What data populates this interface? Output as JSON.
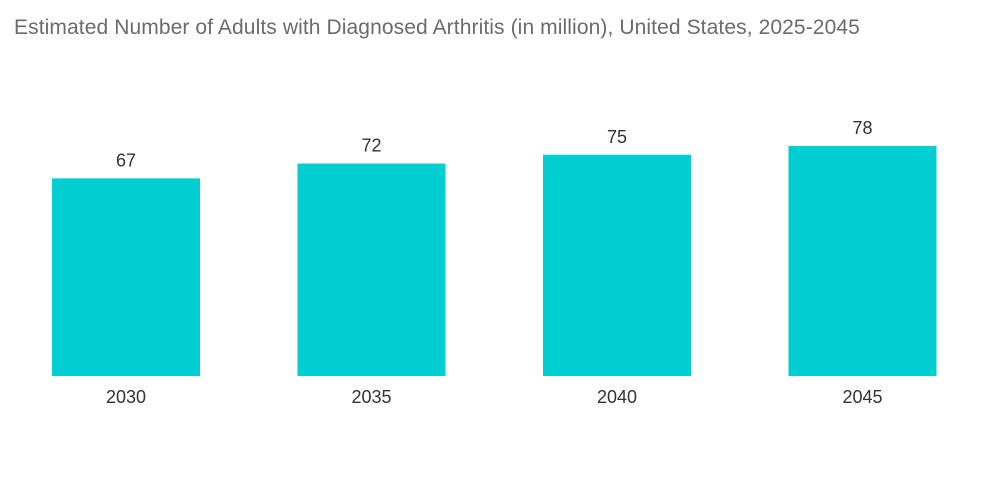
{
  "chart_data": {
    "type": "bar",
    "title": "Estimated Number of Adults with Diagnosed Arthritis (in million), United States, 2025-2045",
    "categories": [
      "2030",
      "2035",
      "2040",
      "2045"
    ],
    "values": [
      67,
      72,
      75,
      78
    ],
    "xlabel": "",
    "ylabel": "",
    "ylim": [
      0,
      90
    ],
    "grid": false,
    "legend": "none",
    "bar_color": "#00ced1"
  }
}
